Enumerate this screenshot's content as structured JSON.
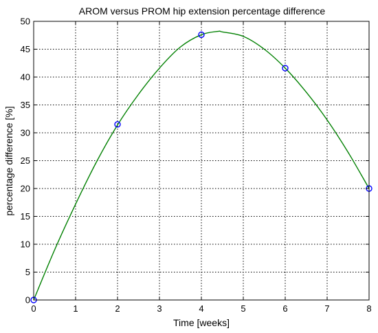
{
  "chart_data": {
    "type": "line",
    "title": "AROM versus PROM hip extension percentage difference",
    "xlabel": "Time [weeks]",
    "ylabel": "percentage difference [%]",
    "xlim": [
      0,
      8
    ],
    "ylim": [
      0,
      50
    ],
    "xticks": [
      "0",
      "1",
      "2",
      "3",
      "4",
      "5",
      "6",
      "7",
      "8"
    ],
    "yticks": [
      "0",
      "5",
      "10",
      "15",
      "20",
      "25",
      "30",
      "35",
      "40",
      "45",
      "50"
    ],
    "grid": true,
    "legend": "none",
    "series": [
      {
        "kind": "markers",
        "color": "#0000ff",
        "marker": "circle",
        "x": [
          0,
          2,
          4,
          6,
          8
        ],
        "y": [
          0,
          31.5,
          47.6,
          41.6,
          20.0
        ]
      },
      {
        "kind": "curve",
        "color": "#008000",
        "x": [
          0,
          0.5,
          1,
          1.5,
          2,
          2.5,
          3,
          3.5,
          4,
          4.4,
          4.5,
          5,
          5.5,
          6,
          6.5,
          7,
          7.5,
          8
        ],
        "y": [
          0,
          9.0,
          17.2,
          24.8,
          31.4,
          36.9,
          41.6,
          45.4,
          47.6,
          48.2,
          48.1,
          47.3,
          45.0,
          41.6,
          37.3,
          32.3,
          26.5,
          20.0
        ]
      }
    ]
  }
}
